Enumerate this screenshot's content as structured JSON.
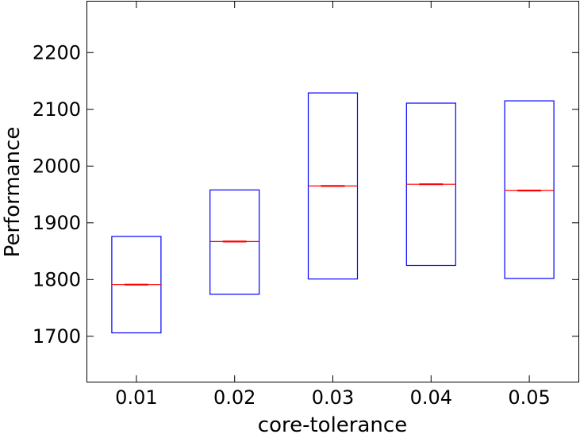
{
  "chart_data": {
    "type": "box",
    "title": "",
    "xlabel": "core-tolerance",
    "ylabel": "Performance",
    "categories": [
      "0.01",
      "0.02",
      "0.03",
      "0.04",
      "0.05"
    ],
    "boxes": [
      {
        "q1": 1706,
        "median": 1791,
        "q3": 1876
      },
      {
        "q1": 1774,
        "median": 1867,
        "q3": 1958
      },
      {
        "q1": 1801,
        "median": 1965,
        "q3": 2129
      },
      {
        "q1": 1825,
        "median": 1968,
        "q3": 2111
      },
      {
        "q1": 1802,
        "median": 1957,
        "q3": 2115
      }
    ],
    "ylim": [
      1620,
      2290
    ],
    "yticks": [
      1700,
      1800,
      1900,
      2000,
      2100,
      2200
    ],
    "ytick_labels": [
      "1700",
      "1800",
      "1900",
      "2000",
      "2100",
      "2200"
    ],
    "grid": false,
    "legend": "none",
    "colors": {
      "box": "#0000ff",
      "median": "#ff0000",
      "axes": "#000000"
    }
  }
}
